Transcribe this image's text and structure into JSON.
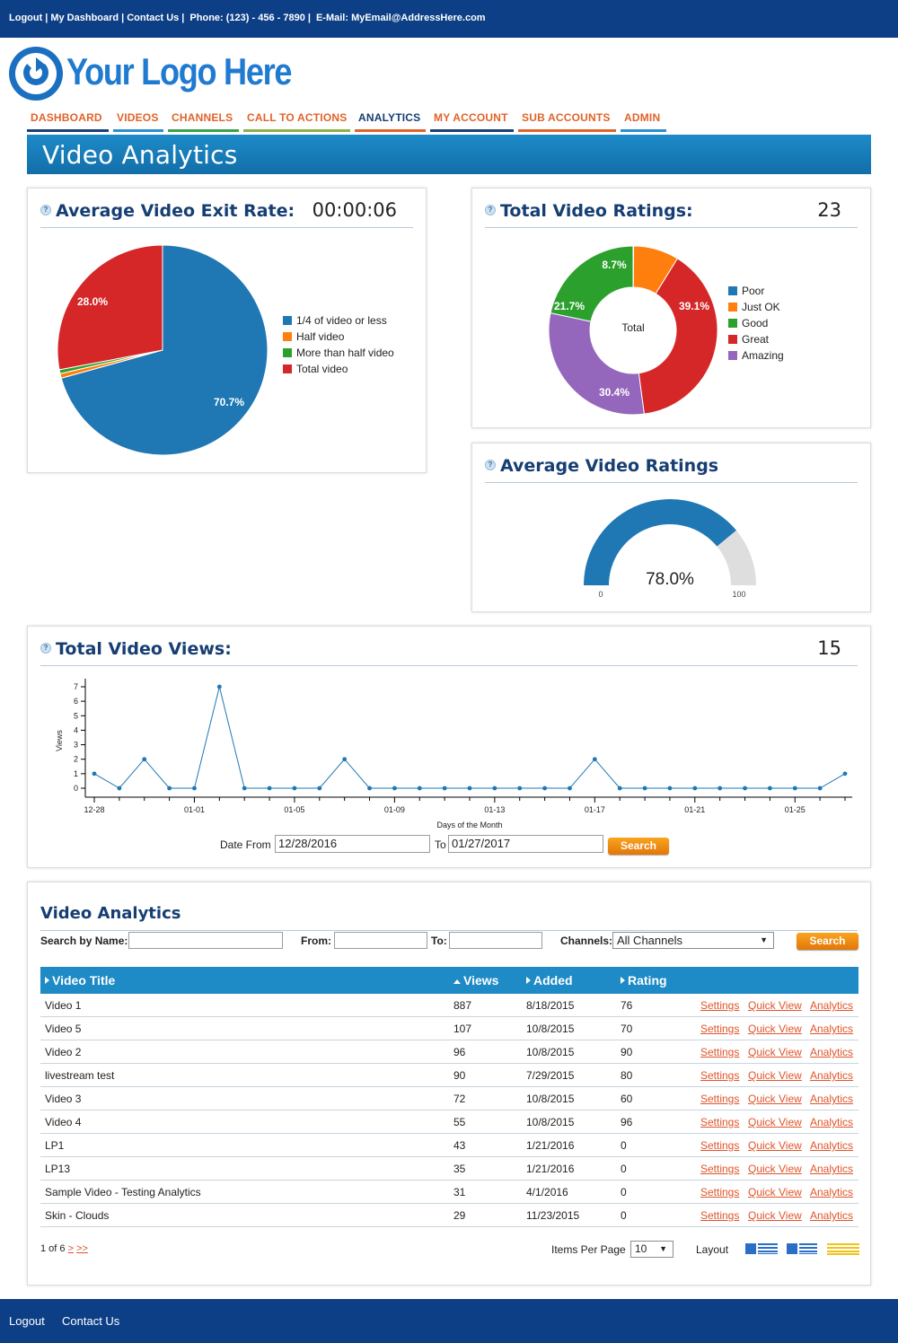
{
  "topbar": {
    "logout": "Logout",
    "dashboard": "My Dashboard",
    "contact": "Contact Us",
    "phone": "Phone: (123) - 456 - 7890",
    "email": "E-Mail: MyEmail@AddressHere.com"
  },
  "logo": {
    "text": "Your Logo Here"
  },
  "nav": [
    {
      "label": "DASHBOARD",
      "color": "#e0632a",
      "bar": "#1a3f7a"
    },
    {
      "label": "VIDEOS",
      "color": "#e0632a",
      "bar": "#2a8fd0"
    },
    {
      "label": "CHANNELS",
      "color": "#e0632a",
      "bar": "#3aa24a"
    },
    {
      "label": "CALL TO ACTIONS",
      "color": "#e0632a",
      "bar": "#8bb14a"
    },
    {
      "label": "ANALYTICS",
      "color": "#163e73",
      "bar": "#e0632a"
    },
    {
      "label": "MY ACCOUNT",
      "color": "#e0632a",
      "bar": "#1a3f7a"
    },
    {
      "label": "SUB ACCOUNTS",
      "color": "#e0632a",
      "bar": "#e0632a"
    },
    {
      "label": "ADMIN",
      "color": "#e0632a",
      "bar": "#2a8fd0"
    }
  ],
  "page_title": "Video Analytics",
  "exit_rate": {
    "title": "Average Video Exit Rate:",
    "value": "00:00:06",
    "slice_labels": [
      "70.7%",
      "28.0%"
    ],
    "legend": [
      "1/4 of video or less",
      "Half video",
      "More than half video",
      "Total video"
    ]
  },
  "ratings_total": {
    "title": "Total Video Ratings:",
    "value": "23",
    "center_label": "Total",
    "slice_labels": [
      "8.7%",
      "39.1%",
      "30.4%",
      "21.7%"
    ],
    "legend": [
      "Poor",
      "Just OK",
      "Good",
      "Great",
      "Amazing"
    ]
  },
  "avg_ratings": {
    "title": "Average Video Ratings",
    "value_label": "78.0%",
    "min_label": "0",
    "max_label": "100"
  },
  "views": {
    "title": "Total Video Views:",
    "value": "15",
    "date_from_label": "Date From",
    "date_from": "12/28/2016",
    "to_label": "To",
    "date_to": "01/27/2017",
    "search": "Search"
  },
  "table_panel": {
    "title": "Video Analytics",
    "search_by_name": "Search by Name:",
    "from": "From:",
    "to": "To:",
    "channels": "Channels:",
    "channel_value": "All Channels",
    "search": "Search",
    "headers": [
      "Video Title",
      "Views",
      "Added",
      "Rating"
    ],
    "link_settings": "Settings",
    "link_quick": "Quick View",
    "link_analytics": "Analytics",
    "rows": [
      {
        "title": "Video 1",
        "views": "887",
        "added": "8/18/2015",
        "rating": "76"
      },
      {
        "title": "Video 5",
        "views": "107",
        "added": "10/8/2015",
        "rating": "70"
      },
      {
        "title": "Video 2",
        "views": "96",
        "added": "10/8/2015",
        "rating": "90"
      },
      {
        "title": "livestream test",
        "views": "90",
        "added": "7/29/2015",
        "rating": "80"
      },
      {
        "title": "Video 3",
        "views": "72",
        "added": "10/8/2015",
        "rating": "60"
      },
      {
        "title": "Video 4",
        "views": "55",
        "added": "10/8/2015",
        "rating": "96"
      },
      {
        "title": "LP1",
        "views": "43",
        "added": "1/21/2016",
        "rating": "0"
      },
      {
        "title": "LP13",
        "views": "35",
        "added": "1/21/2016",
        "rating": "0"
      },
      {
        "title": "Sample Video - Testing Analytics",
        "views": "31",
        "added": "4/1/2016",
        "rating": "0"
      },
      {
        "title": "Skin - Clouds",
        "views": "29",
        "added": "11/23/2015",
        "rating": "0"
      }
    ],
    "pager_text": "1 of 6",
    "pager_next": ">",
    "pager_last": ">>",
    "items_per_page": "Items Per Page",
    "items_value": "10",
    "layout": "Layout"
  },
  "footer": {
    "logout": "Logout",
    "contact": "Contact Us"
  },
  "colors": {
    "blue": "#1f77b4",
    "orange": "#ff7f0e",
    "green": "#2ca02c",
    "red": "#d62728",
    "purple": "#9467bd",
    "gray": "#dedede"
  },
  "chart_data": [
    {
      "type": "pie",
      "title": "Average Video Exit Rate:",
      "series": [
        {
          "name": "1/4 of video or less",
          "value": 70.7
        },
        {
          "name": "Half video",
          "value": 0.7
        },
        {
          "name": "More than half video",
          "value": 0.6
        },
        {
          "name": "Total video",
          "value": 28.0
        }
      ]
    },
    {
      "type": "pie",
      "title": "Total Video Ratings:",
      "donut": true,
      "series": [
        {
          "name": "Poor",
          "value": 0.1
        },
        {
          "name": "Just OK",
          "value": 8.7
        },
        {
          "name": "Great",
          "value": 39.1
        },
        {
          "name": "Amazing",
          "value": 30.4
        },
        {
          "name": "Good",
          "value": 21.7
        }
      ]
    },
    {
      "type": "gauge",
      "title": "Average Video Ratings",
      "value": 78.0,
      "min": 0,
      "max": 100
    },
    {
      "type": "line",
      "title": "Total Video Views:",
      "xlabel": "Days of the Month",
      "ylabel": "Views",
      "ylim": [
        0,
        7
      ],
      "yticks": [
        0,
        1,
        2,
        3,
        4,
        5,
        6,
        7
      ],
      "x": [
        "12-28",
        "12-29",
        "12-30",
        "12-31",
        "01-01",
        "01-02",
        "01-03",
        "01-04",
        "01-05",
        "01-06",
        "01-07",
        "01-08",
        "01-09",
        "01-10",
        "01-11",
        "01-12",
        "01-13",
        "01-14",
        "01-15",
        "01-16",
        "01-17",
        "01-18",
        "01-19",
        "01-20",
        "01-21",
        "01-22",
        "01-23",
        "01-24",
        "01-25",
        "01-26",
        "01-27"
      ],
      "xtick_labels": [
        "12-28",
        "01-01",
        "01-05",
        "01-09",
        "01-13",
        "01-17",
        "01-21",
        "01-25"
      ],
      "values": [
        1,
        0,
        2,
        0,
        0,
        7,
        0,
        0,
        0,
        0,
        2,
        0,
        0,
        0,
        0,
        0,
        0,
        0,
        0,
        0,
        2,
        0,
        0,
        0,
        0,
        0,
        0,
        0,
        0,
        0,
        1
      ]
    }
  ]
}
